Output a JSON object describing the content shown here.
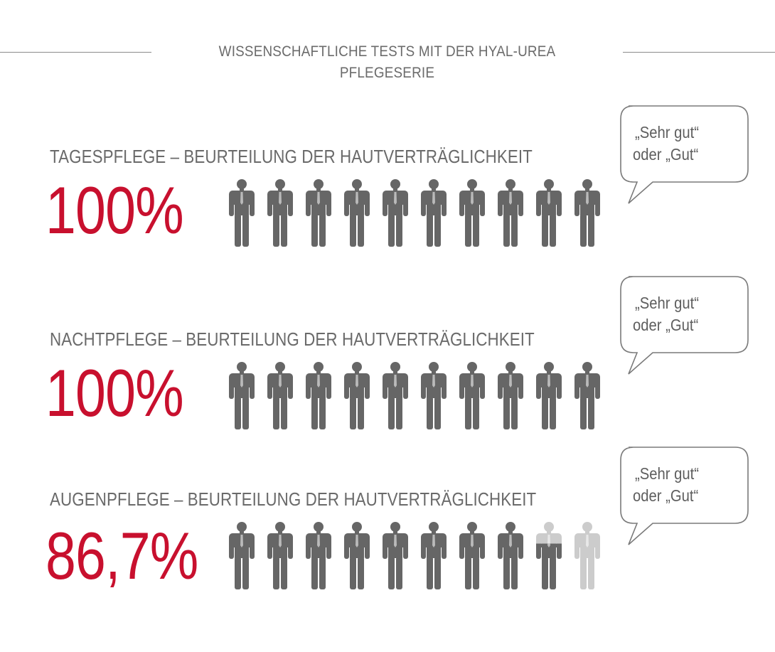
{
  "header": {
    "title": "WISSENSCHAFTLICHE TESTS MIT DER HYAL-UREA PFLEGESERIE"
  },
  "colors": {
    "accent": "#c8102e",
    "icon_filled": "#666666",
    "icon_empty": "#cccccc",
    "text": "#6a6a6a",
    "rule": "#8c8c8c",
    "bubble_stroke": "#7a7a7a"
  },
  "bubble_text": {
    "line1": "„Sehr gut“",
    "line2": "oder „Gut“"
  },
  "chart_data": {
    "type": "pictogram",
    "icons_per_row": 10,
    "rows": [
      {
        "label": "TAGESPFLEGE – BEURTEILUNG DER HAUTVERTRÄGLICHKEIT",
        "value_label": "100%",
        "value": 100.0
      },
      {
        "label": "NACHTPFLEGE – BEURTEILUNG DER HAUTVERTRÄGLICHKEIT",
        "value_label": "100%",
        "value": 100.0
      },
      {
        "label": "AUGENPFLEGE – BEURTEILUNG DER HAUTVERTRÄGLICHKEIT",
        "value_label": "86,7%",
        "value": 86.7
      }
    ]
  }
}
